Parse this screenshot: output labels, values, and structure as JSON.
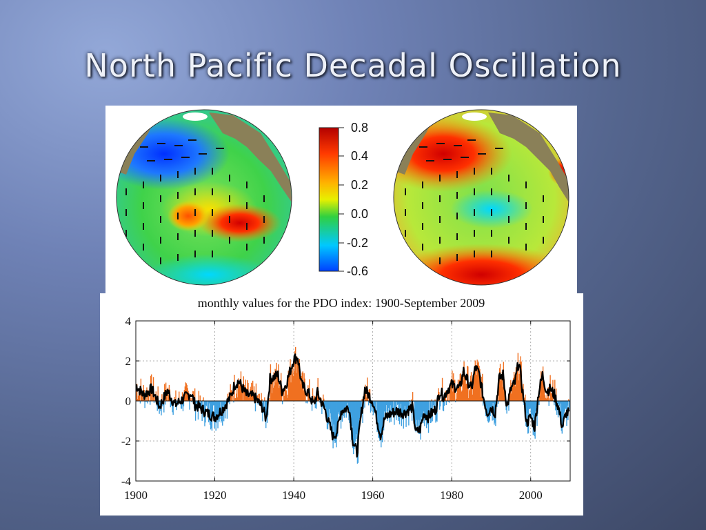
{
  "slide": {
    "title": "North Pacific Decadal Oscillation"
  },
  "maps": {
    "colorbar": {
      "ticks": [
        "0.8",
        "0.4",
        "0.2",
        "0.0",
        "-0.2",
        "-0.6"
      ],
      "colors": [
        "#b30000",
        "#ff3a00",
        "#ffb000",
        "#e8f000",
        "#30d040",
        "#00c8ff",
        "#0040ff"
      ]
    }
  },
  "chart_data": {
    "type": "area",
    "title": "monthly values for the PDO index: 1900-September 2009",
    "xlabel": "",
    "ylabel": "",
    "xlim": [
      1900,
      2010
    ],
    "ylim": [
      -4,
      4
    ],
    "xticks": [
      1900,
      1920,
      1940,
      1960,
      1980,
      2000
    ],
    "yticks": [
      4,
      2,
      0,
      -2,
      -4
    ],
    "grid": true,
    "colors": {
      "positive": "#f07020",
      "negative": "#3fa0e0",
      "smoothed": "#000000"
    },
    "series": [
      {
        "values_by_year": [
          [
            1900,
            0.8
          ],
          [
            1902,
            0.3
          ],
          [
            1904,
            0.6
          ],
          [
            1905,
            0.2
          ],
          [
            1906,
            -0.3
          ],
          [
            1908,
            0.5
          ],
          [
            1910,
            -0.2
          ],
          [
            1912,
            0.1
          ],
          [
            1914,
            0.4
          ],
          [
            1915,
            -0.2
          ],
          [
            1916,
            -0.3
          ],
          [
            1918,
            -0.6
          ],
          [
            1920,
            -0.8
          ],
          [
            1922,
            -0.4
          ],
          [
            1924,
            0.2
          ],
          [
            1925,
            0.8
          ],
          [
            1926,
            1.0
          ],
          [
            1928,
            0.3
          ],
          [
            1930,
            0.2
          ],
          [
            1932,
            -0.3
          ],
          [
            1933,
            -0.9
          ],
          [
            1934,
            1.1
          ],
          [
            1936,
            1.3
          ],
          [
            1937,
            0.5
          ],
          [
            1938,
            0.8
          ],
          [
            1940,
            2.1
          ],
          [
            1941,
            2.2
          ],
          [
            1942,
            0.8
          ],
          [
            1944,
            0.3
          ],
          [
            1945,
            -0.2
          ],
          [
            1946,
            0.4
          ],
          [
            1948,
            -0.5
          ],
          [
            1949,
            -1.2
          ],
          [
            1950,
            -1.8
          ],
          [
            1951,
            -1.5
          ],
          [
            1952,
            -0.5
          ],
          [
            1954,
            -0.3
          ],
          [
            1955,
            -2.0
          ],
          [
            1956,
            -2.6
          ],
          [
            1957,
            -0.8
          ],
          [
            1958,
            0.6
          ],
          [
            1959,
            0.3
          ],
          [
            1960,
            0.0
          ],
          [
            1961,
            -0.9
          ],
          [
            1962,
            -1.7
          ],
          [
            1963,
            -0.9
          ],
          [
            1964,
            -0.7
          ],
          [
            1966,
            -0.5
          ],
          [
            1968,
            -0.6
          ],
          [
            1970,
            -0.3
          ],
          [
            1971,
            -1.6
          ],
          [
            1972,
            -1.4
          ],
          [
            1973,
            -0.6
          ],
          [
            1974,
            -0.8
          ],
          [
            1976,
            -0.4
          ],
          [
            1977,
            0.5
          ],
          [
            1978,
            0.2
          ],
          [
            1979,
            0.6
          ],
          [
            1980,
            0.8
          ],
          [
            1982,
            0.6
          ],
          [
            1983,
            1.5
          ],
          [
            1984,
            1.0
          ],
          [
            1985,
            0.6
          ],
          [
            1986,
            1.7
          ],
          [
            1987,
            1.3
          ],
          [
            1988,
            0.2
          ],
          [
            1989,
            -0.6
          ],
          [
            1990,
            -0.3
          ],
          [
            1991,
            -0.6
          ],
          [
            1992,
            1.1
          ],
          [
            1993,
            1.3
          ],
          [
            1994,
            -0.3
          ],
          [
            1995,
            0.6
          ],
          [
            1996,
            0.9
          ],
          [
            1997,
            2.0
          ],
          [
            1998,
            0.4
          ],
          [
            1999,
            -1.1
          ],
          [
            2000,
            -0.8
          ],
          [
            2001,
            -1.3
          ],
          [
            2002,
            0.4
          ],
          [
            2003,
            1.3
          ],
          [
            2004,
            0.5
          ],
          [
            2005,
            0.6
          ],
          [
            2006,
            0.3
          ],
          [
            2007,
            -0.3
          ],
          [
            2008,
            -1.3
          ],
          [
            2009,
            -0.6
          ]
        ]
      }
    ]
  }
}
